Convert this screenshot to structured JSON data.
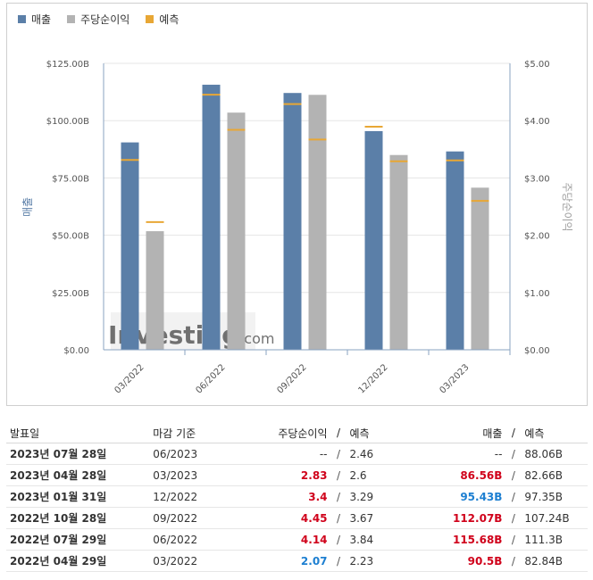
{
  "legend": [
    {
      "label": "매출",
      "color": "#5b7fa8"
    },
    {
      "label": "주당순이익",
      "color": "#b3b3b3"
    },
    {
      "label": "예측",
      "color": "#e8a735"
    }
  ],
  "watermark": {
    "brand": "Investing",
    "suffix": ".com"
  },
  "chart_data": {
    "type": "bar",
    "categories": [
      "03/2022",
      "06/2022",
      "09/2022",
      "12/2022",
      "03/2023"
    ],
    "series": [
      {
        "name": "매출",
        "axis": "left",
        "unit": "B",
        "values": [
          90.5,
          115.68,
          112.07,
          95.43,
          86.56
        ],
        "forecast": [
          82.84,
          111.3,
          107.24,
          97.35,
          82.66
        ]
      },
      {
        "name": "주당순이익",
        "axis": "right",
        "values": [
          2.07,
          4.14,
          4.45,
          3.4,
          2.83
        ],
        "forecast": [
          2.23,
          3.84,
          3.67,
          3.29,
          2.6
        ]
      }
    ],
    "left_axis": {
      "label": "매출",
      "ticks": [
        "$0.00",
        "$25.00B",
        "$50.00B",
        "$75.00B",
        "$100.00B",
        "$125.00B"
      ],
      "min": 0,
      "max": 125
    },
    "right_axis": {
      "label": "주당순이익",
      "ticks": [
        "$0.00",
        "$1.00",
        "$2.00",
        "$3.00",
        "$4.00",
        "$5.00"
      ],
      "min": 0,
      "max": 5
    },
    "colors": {
      "revenue": "#5b7fa8",
      "eps": "#b3b3b3",
      "forecast": "#e8a735",
      "left_axis_label": "#5b7fa8",
      "right_axis_label": "#a0a0a0"
    }
  },
  "table": {
    "headers": {
      "date": "발표일",
      "period": "마감 기준",
      "eps": "주당순이익",
      "sep": "/",
      "eps_forecast": "예측",
      "revenue": "매출",
      "revenue_forecast": "예측"
    },
    "rows": [
      {
        "date": "2023년 07월 28일",
        "period": "06/2023",
        "eps": "--",
        "eps_state": "neu",
        "eps_forecast": "2.46",
        "revenue": "--",
        "revenue_state": "neu",
        "revenue_forecast": "88.06B",
        "sep": "/"
      },
      {
        "date": "2023년 04월 28일",
        "period": "03/2023",
        "eps": "2.83",
        "eps_state": "pos",
        "eps_forecast": "2.6",
        "revenue": "86.56B",
        "revenue_state": "pos",
        "revenue_forecast": "82.66B",
        "sep": "/"
      },
      {
        "date": "2023년 01월 31일",
        "period": "12/2022",
        "eps": "3.4",
        "eps_state": "pos",
        "eps_forecast": "3.29",
        "revenue": "95.43B",
        "revenue_state": "neg",
        "revenue_forecast": "97.35B",
        "sep": "/"
      },
      {
        "date": "2022년 10월 28일",
        "period": "09/2022",
        "eps": "4.45",
        "eps_state": "pos",
        "eps_forecast": "3.67",
        "revenue": "112.07B",
        "revenue_state": "pos",
        "revenue_forecast": "107.24B",
        "sep": "/"
      },
      {
        "date": "2022년 07월 29일",
        "period": "06/2022",
        "eps": "4.14",
        "eps_state": "pos",
        "eps_forecast": "3.84",
        "revenue": "115.68B",
        "revenue_state": "pos",
        "revenue_forecast": "111.3B",
        "sep": "/"
      },
      {
        "date": "2022년 04월 29일",
        "period": "03/2022",
        "eps": "2.07",
        "eps_state": "neg",
        "eps_forecast": "2.23",
        "revenue": "90.5B",
        "revenue_state": "pos",
        "revenue_forecast": "82.84B",
        "sep": "/"
      }
    ]
  }
}
